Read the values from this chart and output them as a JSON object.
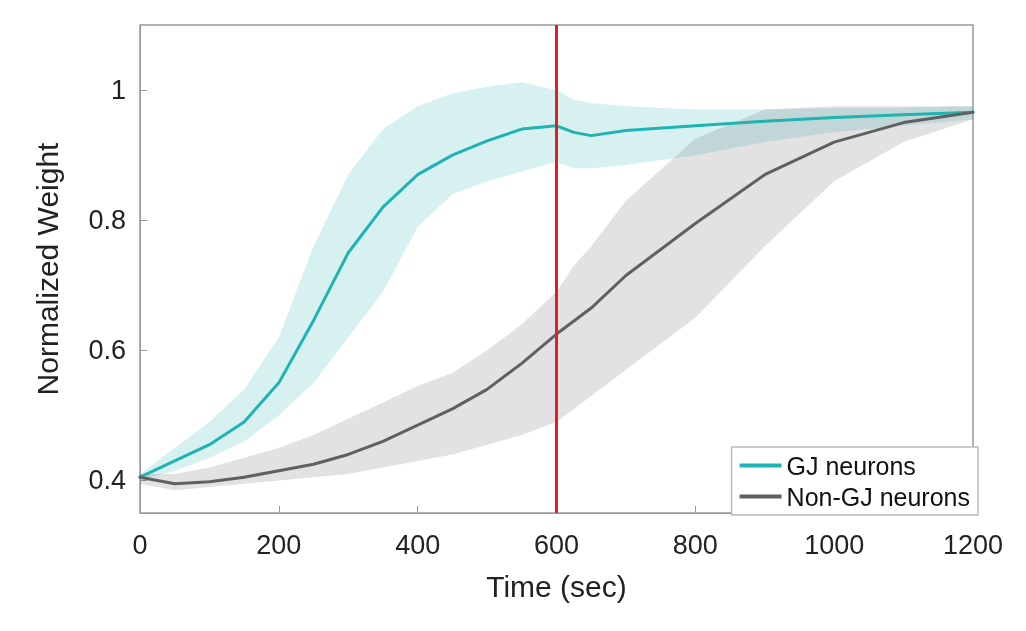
{
  "chart_data": {
    "type": "line",
    "xlabel": "Time (sec)",
    "ylabel": "Normalized Weight",
    "x": [
      0,
      50,
      100,
      150,
      200,
      250,
      300,
      350,
      400,
      450,
      500,
      550,
      600,
      625,
      650,
      700,
      800,
      900,
      1000,
      1100,
      1200
    ],
    "series": [
      {
        "name": "GJ neurons",
        "color": "#1fb3b3",
        "values": [
          0.405,
          0.43,
          0.455,
          0.49,
          0.55,
          0.646,
          0.75,
          0.82,
          0.87,
          0.9,
          0.922,
          0.94,
          0.945,
          0.935,
          0.93,
          0.938,
          0.945,
          0.952,
          0.958,
          0.962,
          0.966
        ],
        "lower": [
          0.4,
          0.415,
          0.435,
          0.46,
          0.5,
          0.55,
          0.62,
          0.69,
          0.79,
          0.84,
          0.86,
          0.875,
          0.89,
          0.88,
          0.88,
          0.885,
          0.9,
          0.92,
          0.935,
          0.945,
          0.955
        ],
        "upper": [
          0.41,
          0.45,
          0.49,
          0.54,
          0.62,
          0.76,
          0.87,
          0.94,
          0.975,
          0.995,
          1.005,
          1.012,
          1.0,
          0.985,
          0.98,
          0.975,
          0.97,
          0.97,
          0.972,
          0.973,
          0.975
        ]
      },
      {
        "name": "Non-GJ neurons",
        "color": "#606060",
        "values": [
          0.405,
          0.395,
          0.398,
          0.405,
          0.415,
          0.425,
          0.44,
          0.46,
          0.485,
          0.51,
          0.54,
          0.58,
          0.625,
          0.645,
          0.665,
          0.715,
          0.795,
          0.87,
          0.92,
          0.95,
          0.966
        ],
        "lower": [
          0.395,
          0.385,
          0.39,
          0.395,
          0.4,
          0.405,
          0.41,
          0.42,
          0.43,
          0.44,
          0.455,
          0.47,
          0.49,
          0.51,
          0.53,
          0.57,
          0.65,
          0.76,
          0.86,
          0.92,
          0.955
        ],
        "upper": [
          0.41,
          0.41,
          0.42,
          0.435,
          0.45,
          0.47,
          0.495,
          0.52,
          0.545,
          0.565,
          0.6,
          0.64,
          0.69,
          0.73,
          0.76,
          0.83,
          0.925,
          0.97,
          0.975,
          0.975,
          0.975
        ]
      }
    ],
    "xlim": [
      0,
      1200
    ],
    "xticks": [
      0,
      200,
      400,
      600,
      800,
      1000,
      1200
    ],
    "ylim": [
      0.35,
      1.1
    ],
    "yticks": [
      0.4,
      0.6,
      0.8,
      1
    ],
    "ref_lines": [
      {
        "axis": "x",
        "value": 600,
        "color": "#e02020",
        "line_style": "solid"
      }
    ],
    "grid": false,
    "legend": "bottom right",
    "marker": "none",
    "line_style": "solid"
  }
}
